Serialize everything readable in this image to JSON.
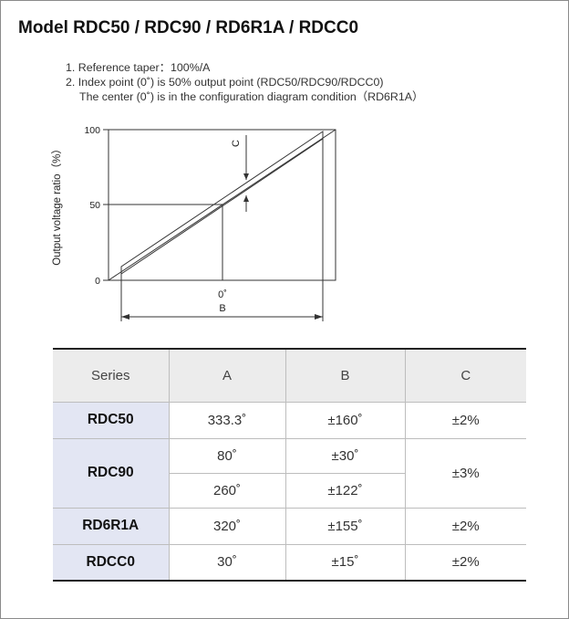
{
  "title": "Model RDC50 / RDC90 / RD6R1A / RDCC0",
  "notes": [
    "1. Reference taper：100%/A",
    "2. Index point (0˚) is 50% output point (RDC50/RDC90/RDCC0)",
    "The center (0˚) is in the configuration diagram condition（RD6R1A）"
  ],
  "diagram": {
    "y_axis_label": "Output voltage ratio（%）",
    "y_ticks": [
      "100",
      "50",
      "0"
    ],
    "center_label": "0˚",
    "b_label": "B",
    "c_label": "C"
  },
  "table": {
    "headers": [
      "Series",
      "A",
      "B",
      "C"
    ],
    "rows": [
      {
        "series": "RDC50",
        "A": "333.3˚",
        "B": "±160˚",
        "C": "±2%"
      },
      {
        "series": "RDC90",
        "A": "80˚",
        "B": "±30˚",
        "C": "±3%"
      },
      {
        "A": "260˚",
        "B": "±122˚"
      },
      {
        "series": "RD6R1A",
        "A": "320˚",
        "B": "±155˚",
        "C": "±2%"
      },
      {
        "series": "RDCC0",
        "A": "30˚",
        "B": "±15˚",
        "C": "±2%"
      }
    ]
  }
}
